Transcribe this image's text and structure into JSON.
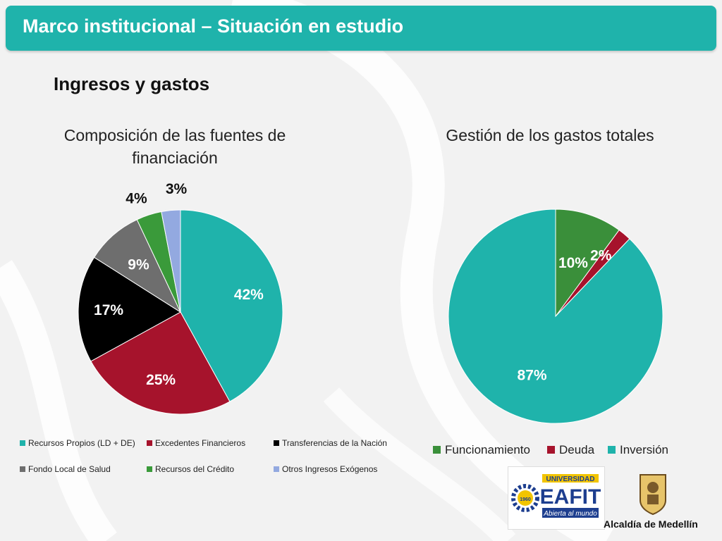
{
  "header": {
    "title": "Marco institucional – Situación en estudio"
  },
  "section": {
    "subtitle": "Ingresos y gastos"
  },
  "chart_data": [
    {
      "type": "pie",
      "title": "Composición de las fuentes de financiación",
      "categories": [
        "Recursos Propios (LD + DE)",
        "Excedentes Financieros",
        "Transferencias de la Nación",
        "Fondo Local de Salud",
        "Recursos del Crédito",
        "Otros Ingresos Exógenos"
      ],
      "values": [
        42,
        25,
        17,
        9,
        4,
        3
      ],
      "labels": [
        "42%",
        "25%",
        "17%",
        "9%",
        "4%",
        "3%"
      ],
      "colors": [
        "#1fb3ab",
        "#a6132c",
        "#000000",
        "#6e6e6e",
        "#3a9a3a",
        "#93a9e0"
      ],
      "legend": "bottom"
    },
    {
      "type": "pie",
      "title": "Gestión de los gastos totales",
      "categories": [
        "Funcionamiento",
        "Deuda",
        "Inversión"
      ],
      "values": [
        10,
        2,
        87
      ],
      "labels": [
        "10%",
        "2%",
        "87%"
      ],
      "colors": [
        "#3a8f3a",
        "#a6132c",
        "#1fb3ab"
      ],
      "legend": "bottom"
    }
  ],
  "logos": {
    "eafit": {
      "line1": "UNIVERSIDAD",
      "line2": "EAFIT",
      "line3": "Abierta al mundo",
      "badge": "1960"
    },
    "alcaldia": {
      "text": "Alcaldía de Medellín"
    }
  }
}
